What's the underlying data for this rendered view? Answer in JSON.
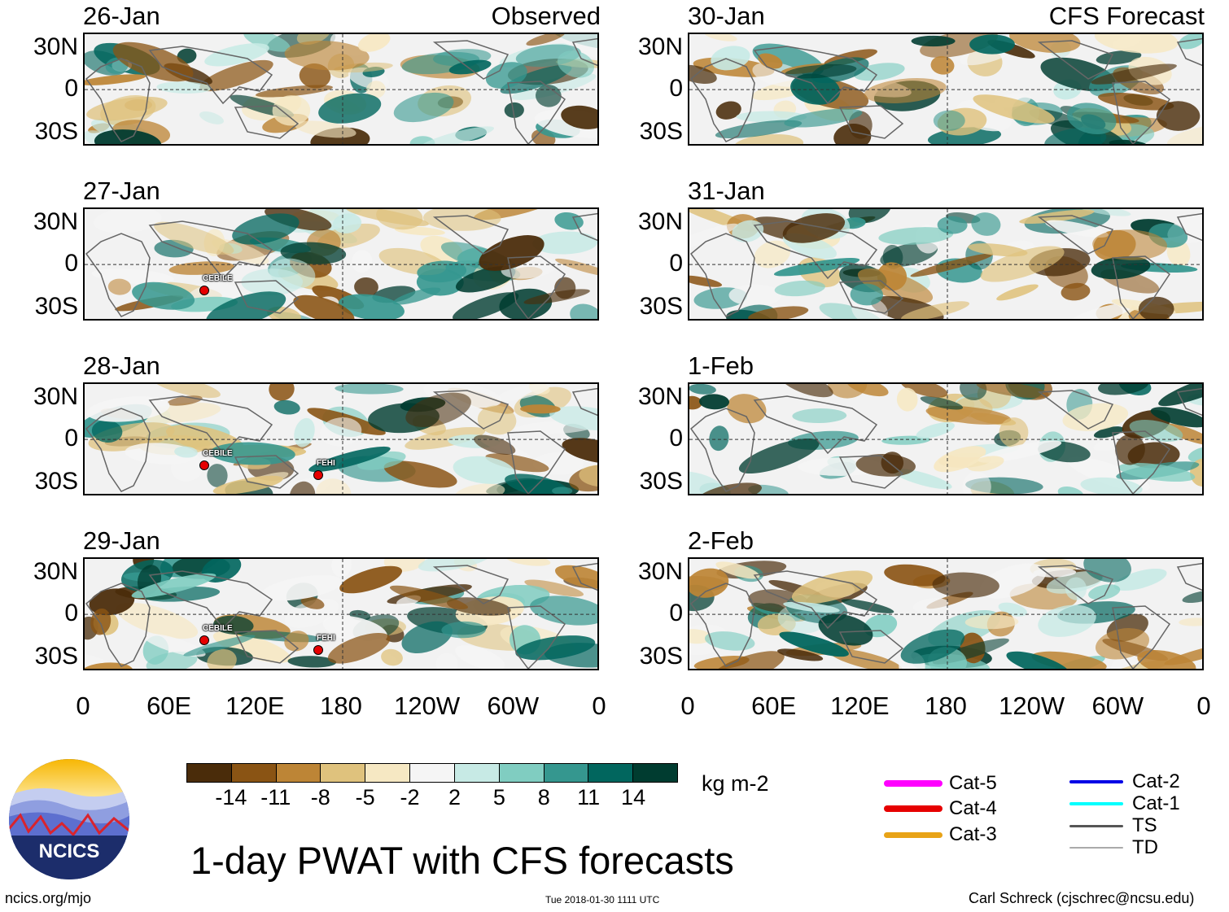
{
  "title": "1-day PWAT with CFS forecasts",
  "url": "ncics.org/mjo",
  "timestamp": "Tue 2018-01-30 1111 UTC",
  "author": "Carl Schreck (cjschrec@ncsu.edu)",
  "logo_text": "NCICS",
  "columns": {
    "observed": "Observed",
    "forecast": "CFS Forecast"
  },
  "panels_left": [
    {
      "date": "26-Jan",
      "storms": []
    },
    {
      "date": "27-Jan",
      "storms": [
        "CEBILE"
      ]
    },
    {
      "date": "28-Jan",
      "storms": [
        "CEBILE",
        "FEHI"
      ]
    },
    {
      "date": "29-Jan",
      "storms": [
        "CEBILE",
        "FEHI"
      ]
    }
  ],
  "panels_right": [
    {
      "date": "30-Jan"
    },
    {
      "date": "31-Jan"
    },
    {
      "date": "1-Feb"
    },
    {
      "date": "2-Feb"
    }
  ],
  "lat_labels": [
    "30N",
    "0",
    "30S"
  ],
  "lon_labels": [
    "0",
    "60E",
    "120E",
    "180",
    "120W",
    "60W",
    "0"
  ],
  "colorbar": {
    "unit": "kg m-2",
    "ticks": [
      "-14",
      "-11",
      "-8",
      "-5",
      "-2",
      "2",
      "5",
      "8",
      "11",
      "14"
    ],
    "colors": [
      "#4a2c0a",
      "#8a5414",
      "#bd8536",
      "#dfc27d",
      "#f6e8c3",
      "#f5f5f5",
      "#c7eae5",
      "#80cdc1",
      "#35978f",
      "#01665e",
      "#003c30"
    ]
  },
  "legend": [
    {
      "label": "Cat-5",
      "color": "#ff00ff"
    },
    {
      "label": "Cat-4",
      "color": "#e60000"
    },
    {
      "label": "Cat-3",
      "color": "#e8a317"
    },
    {
      "label": "Cat-2",
      "color": "#0000e6"
    },
    {
      "label": "Cat-1",
      "color": "#00ffff"
    },
    {
      "label": "TS",
      "color": "#555555"
    },
    {
      "label": "TD",
      "color": "#aaaaaa"
    }
  ]
}
